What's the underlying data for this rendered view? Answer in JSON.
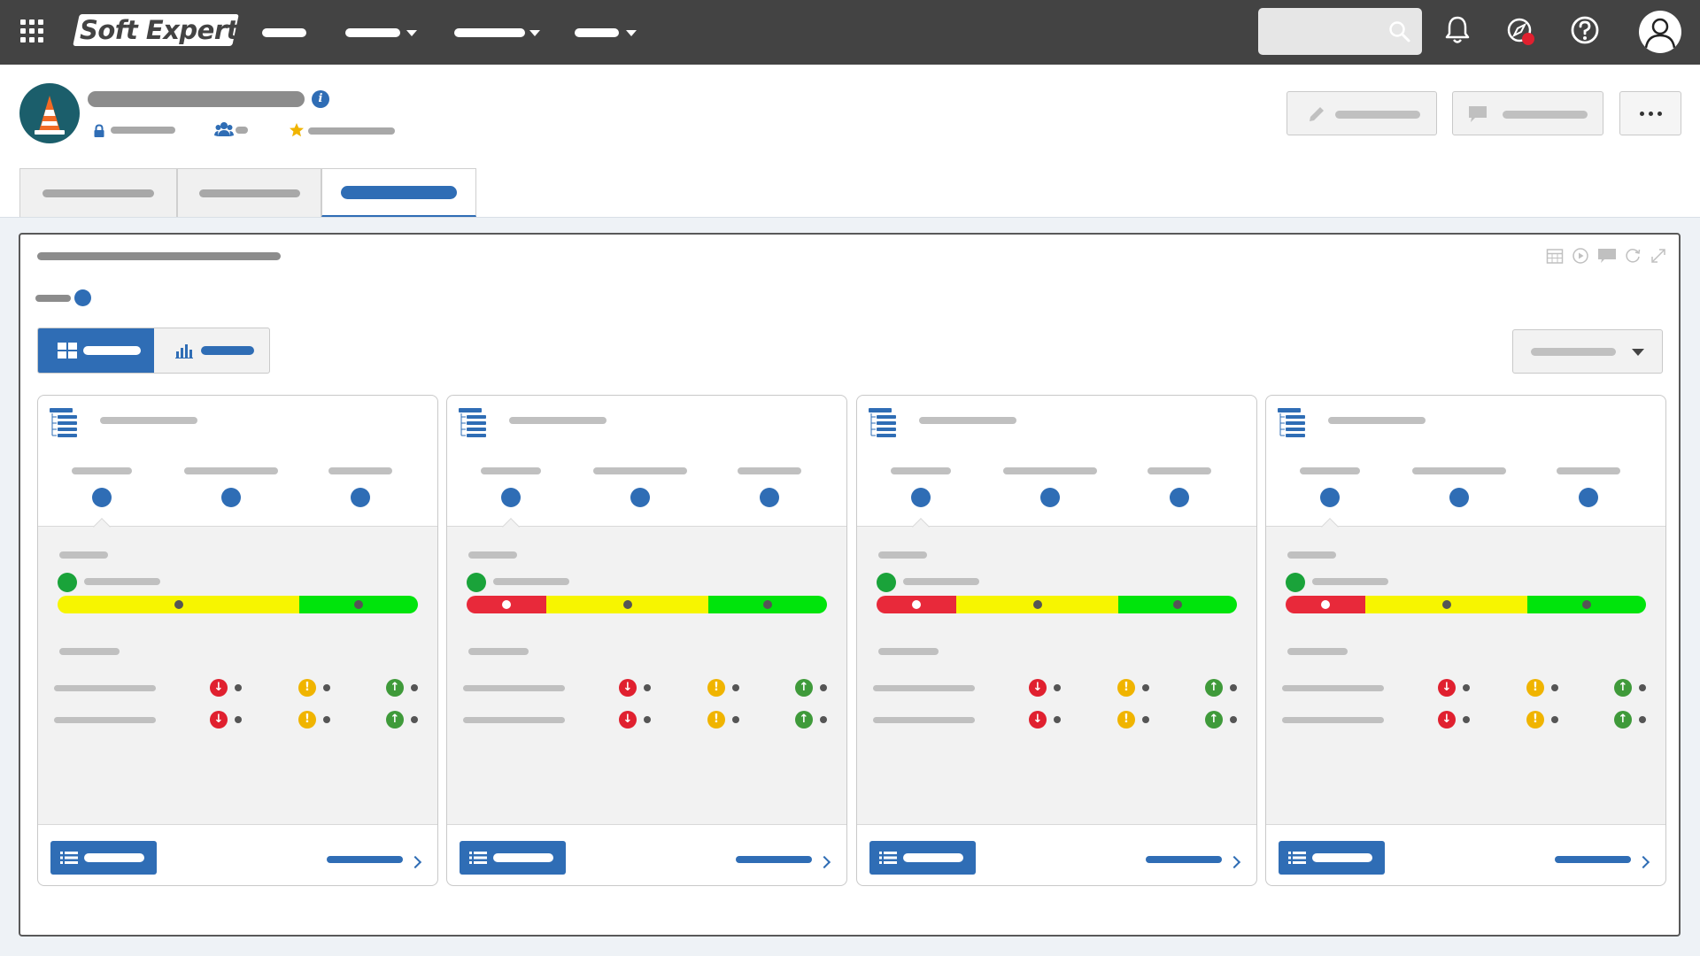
{
  "brand": {
    "logo_text": "Soft Expert"
  },
  "colors": {
    "topbar": "#434343",
    "accent": "#2f6db5",
    "gauge_red": "#e8293a",
    "gauge_yellow": "#f7f500",
    "gauge_green": "#00e40c",
    "status_green": "#1aa33a",
    "trend_down": "#e0202f",
    "trend_warn": "#f0b400",
    "trend_up": "#3f9a3a",
    "notification_badge": "#e0202f"
  },
  "topbar": {
    "icons": [
      "apps-grid-icon",
      "search-icon",
      "bell-icon",
      "compass-icon",
      "help-icon",
      "user-avatar-icon"
    ]
  },
  "header": {
    "project_icon": "traffic-cone-icon",
    "meta_icons": [
      "lock-icon",
      "team-icon",
      "star-icon"
    ],
    "info_glyph": "i",
    "edit_icon": "pencil-icon",
    "comment_icon": "comment-icon",
    "more_icon": "ellipsis-icon"
  },
  "panel": {
    "tool_icons": [
      "calendar-icon",
      "play-icon",
      "comment-icon",
      "refresh-icon",
      "expand-icon"
    ],
    "view_icons": [
      "grid-view-icon",
      "bar-chart-icon"
    ]
  },
  "cards": [
    {
      "header_icon": "hierarchy-list-icon",
      "gauge_fractions": {
        "red": 0.0,
        "yellow": 0.67,
        "green": 0.33
      },
      "trend_rows": 2
    },
    {
      "header_icon": "hierarchy-list-icon",
      "gauge_fractions": {
        "red": 0.22,
        "yellow": 0.45,
        "green": 0.33
      },
      "trend_rows": 2
    },
    {
      "header_icon": "hierarchy-list-icon",
      "gauge_fractions": {
        "red": 0.22,
        "yellow": 0.45,
        "green": 0.33
      },
      "trend_rows": 2
    },
    {
      "header_icon": "hierarchy-list-icon",
      "gauge_fractions": {
        "red": 0.22,
        "yellow": 0.45,
        "green": 0.33
      },
      "trend_rows": 2
    }
  ],
  "trend_glyphs": {
    "down": "↓",
    "warn": "!",
    "up": "↑"
  }
}
